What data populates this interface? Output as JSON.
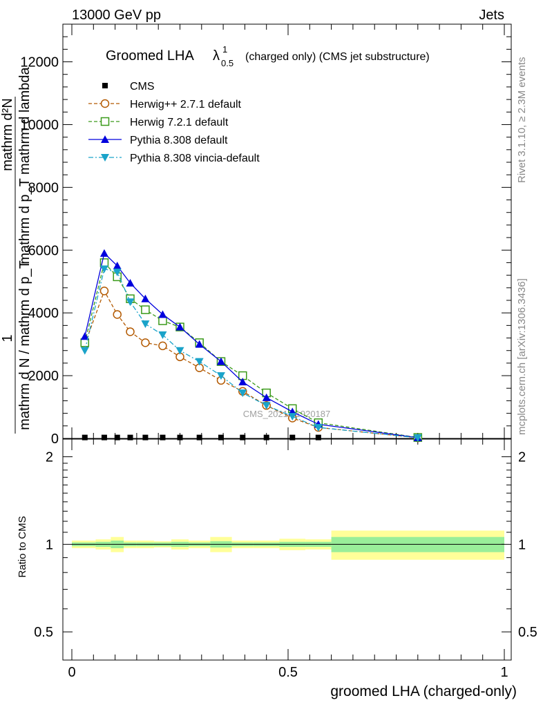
{
  "header": {
    "energy": "13000 GeV pp",
    "category": "Jets"
  },
  "side_labels": {
    "rivet": "Rivet 3.1.10, ≥ 2.3M events",
    "mcplots": "mcplots.cern.ch [arXiv:1306.3436]"
  },
  "chart_data": {
    "type": "line",
    "title_main": "Groomed LHA",
    "title_lambda": "λ",
    "title_sup": "1",
    "title_sub": "0.5",
    "title_rest": "(charged only) (CMS jet substructure)",
    "ylabel_top": "1",
    "ylabel_bottom": "mathrm d N / mathrm d p_T",
    "ylabel_sub_top": "mathrm d²N",
    "ylabel_sub_bottom": "mathrm d p_T mathrm d lambda",
    "xlabel": "groomed LHA (charged-only)",
    "watermark": "CMS_2021_I1920187",
    "xlim": [
      0,
      1
    ],
    "ylim": [
      0,
      13200
    ],
    "yticks": [
      {
        "v": 0,
        "label": "0"
      },
      {
        "v": 2000,
        "label": "2000"
      },
      {
        "v": 4000,
        "label": "4000"
      },
      {
        "v": 6000,
        "label": "6000"
      },
      {
        "v": 8000,
        "label": "8000"
      },
      {
        "v": 10000,
        "label": "10000"
      },
      {
        "v": 12000,
        "label": "12000"
      }
    ],
    "xticks": [
      {
        "v": 0,
        "label": "0"
      },
      {
        "v": 0.5,
        "label": "0.5"
      },
      {
        "v": 1,
        "label": "1"
      }
    ],
    "x": [
      0.03,
      0.075,
      0.105,
      0.135,
      0.17,
      0.21,
      0.25,
      0.295,
      0.345,
      0.395,
      0.45,
      0.51,
      0.57,
      0.8
    ],
    "series": [
      {
        "name": "CMS",
        "color": "#000000",
        "marker": "square-filled",
        "dash": "",
        "values": [
          30,
          30,
          30,
          30,
          30,
          30,
          30,
          30,
          30,
          30,
          30,
          30,
          30,
          null
        ]
      },
      {
        "name": "Herwig++ 2.7.1 default",
        "color": "#b35900",
        "marker": "circle-open",
        "dash": "5,3",
        "values": [
          3000,
          4700,
          3950,
          3400,
          3050,
          2950,
          2600,
          2250,
          1850,
          1500,
          1050,
          650,
          350,
          20
        ]
      },
      {
        "name": "Herwig 7.2.1 default",
        "color": "#3a9a1a",
        "marker": "square-open",
        "dash": "5,3",
        "values": [
          3050,
          5600,
          5150,
          4450,
          4100,
          3750,
          3550,
          3050,
          2450,
          2000,
          1450,
          950,
          500,
          30
        ]
      },
      {
        "name": "Pythia 8.308 default",
        "color": "#0000dd",
        "marker": "triangle-up",
        "dash": "",
        "values": [
          3250,
          5900,
          5500,
          4950,
          4450,
          3950,
          3550,
          3000,
          2450,
          1800,
          1300,
          850,
          450,
          25
        ]
      },
      {
        "name": "Pythia 8.308 vincia-default",
        "color": "#1aa3c9",
        "marker": "triangle-down",
        "dash": "7,3,2,3",
        "values": [
          2800,
          5400,
          5300,
          4350,
          3650,
          3300,
          2800,
          2450,
          2000,
          1450,
          1050,
          700,
          350,
          20
        ]
      }
    ],
    "ratio": {
      "ylabel": "Ratio to CMS",
      "ylim": [
        0.4,
        2.3
      ],
      "yticks": [
        {
          "v": 0.5,
          "label": "0.5"
        },
        {
          "v": 1,
          "label": "1"
        },
        {
          "v": 2,
          "label": "2"
        }
      ],
      "bands": [
        {
          "x0": 0.0,
          "x1": 0.055,
          "inner": [
            0.985,
            1.015
          ],
          "outer": [
            0.97,
            1.03
          ]
        },
        {
          "x0": 0.055,
          "x1": 0.09,
          "inner": [
            0.98,
            1.02
          ],
          "outer": [
            0.96,
            1.04
          ]
        },
        {
          "x0": 0.09,
          "x1": 0.12,
          "inner": [
            0.97,
            1.03
          ],
          "outer": [
            0.94,
            1.06
          ]
        },
        {
          "x0": 0.12,
          "x1": 0.15,
          "inner": [
            0.985,
            1.015
          ],
          "outer": [
            0.97,
            1.03
          ]
        },
        {
          "x0": 0.15,
          "x1": 0.19,
          "inner": [
            0.985,
            1.015
          ],
          "outer": [
            0.97,
            1.03
          ]
        },
        {
          "x0": 0.19,
          "x1": 0.23,
          "inner": [
            0.985,
            1.015
          ],
          "outer": [
            0.975,
            1.025
          ]
        },
        {
          "x0": 0.23,
          "x1": 0.27,
          "inner": [
            0.98,
            1.02
          ],
          "outer": [
            0.96,
            1.04
          ]
        },
        {
          "x0": 0.27,
          "x1": 0.32,
          "inner": [
            0.985,
            1.015
          ],
          "outer": [
            0.97,
            1.03
          ]
        },
        {
          "x0": 0.32,
          "x1": 0.37,
          "inner": [
            0.975,
            1.025
          ],
          "outer": [
            0.94,
            1.06
          ]
        },
        {
          "x0": 0.37,
          "x1": 0.42,
          "inner": [
            0.985,
            1.015
          ],
          "outer": [
            0.97,
            1.03
          ]
        },
        {
          "x0": 0.42,
          "x1": 0.48,
          "inner": [
            0.985,
            1.015
          ],
          "outer": [
            0.97,
            1.03
          ]
        },
        {
          "x0": 0.48,
          "x1": 0.54,
          "inner": [
            0.98,
            1.02
          ],
          "outer": [
            0.955,
            1.045
          ]
        },
        {
          "x0": 0.54,
          "x1": 0.6,
          "inner": [
            0.98,
            1.02
          ],
          "outer": [
            0.96,
            1.04
          ]
        },
        {
          "x0": 0.6,
          "x1": 1.0,
          "inner": [
            0.94,
            1.06
          ],
          "outer": [
            0.885,
            1.115
          ]
        }
      ]
    }
  }
}
